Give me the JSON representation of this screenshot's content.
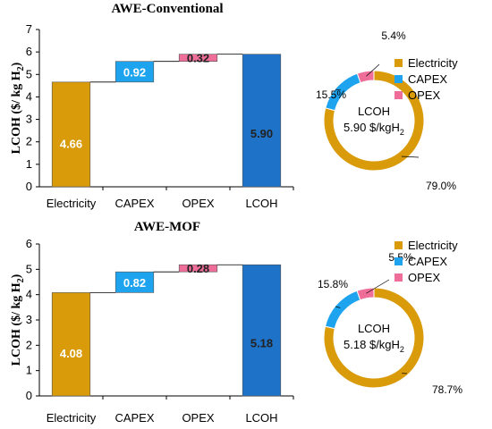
{
  "colors": {
    "electricity": "#d99b0a",
    "capex": "#1ea3ee",
    "opex": "#ee6e99",
    "lcoh": "#1e73c8"
  },
  "chart_data": [
    {
      "type": "bar",
      "subtype": "waterfall",
      "title": "AWE-Conventional",
      "ylabel": "LCOH ($/ kg H",
      "ylabel_sub": "2",
      "ylabel_end": ")",
      "ylim": [
        0,
        7
      ],
      "yticks": [
        "0",
        "1",
        "2",
        "3",
        "4",
        "5",
        "6",
        "7"
      ],
      "categories": [
        "Electricity",
        "CAPEX",
        "OPEX",
        "LCOH"
      ],
      "values": [
        4.66,
        0.92,
        0.32,
        5.9
      ],
      "labels": [
        "4.66",
        "0.92",
        "0.32",
        "5.90"
      ]
    },
    {
      "type": "pie",
      "subtype": "donut",
      "categories": [
        "Electricity",
        "CAPEX",
        "OPEX"
      ],
      "values": [
        79.0,
        15.5,
        5.4
      ],
      "labels": [
        "79.0%",
        "15.5%",
        "5.4%"
      ],
      "center_title": "LCOH",
      "center_value": "5.90 $/kgH",
      "center_sub": "2",
      "legend": "top-right"
    },
    {
      "type": "bar",
      "subtype": "waterfall",
      "title": "AWE-MOF",
      "ylabel": "LCOH ($/ kg H",
      "ylabel_sub": "2",
      "ylabel_end": ")",
      "ylim": [
        0,
        6
      ],
      "yticks": [
        "0",
        "1",
        "2",
        "3",
        "4",
        "5",
        "6"
      ],
      "categories": [
        "Electricity",
        "CAPEX",
        "OPEX",
        "LCOH"
      ],
      "values": [
        4.08,
        0.82,
        0.28,
        5.18
      ],
      "labels": [
        "4.08",
        "0.82",
        "0.28",
        "5.18"
      ]
    },
    {
      "type": "pie",
      "subtype": "donut",
      "categories": [
        "Electricity",
        "CAPEX",
        "OPEX"
      ],
      "values": [
        78.7,
        15.8,
        5.5
      ],
      "labels": [
        "78.7%",
        "15.8%",
        "5.5%"
      ],
      "center_title": "LCOH",
      "center_value": "5.18 $/kgH",
      "center_sub": "2",
      "legend": "top-right"
    }
  ]
}
